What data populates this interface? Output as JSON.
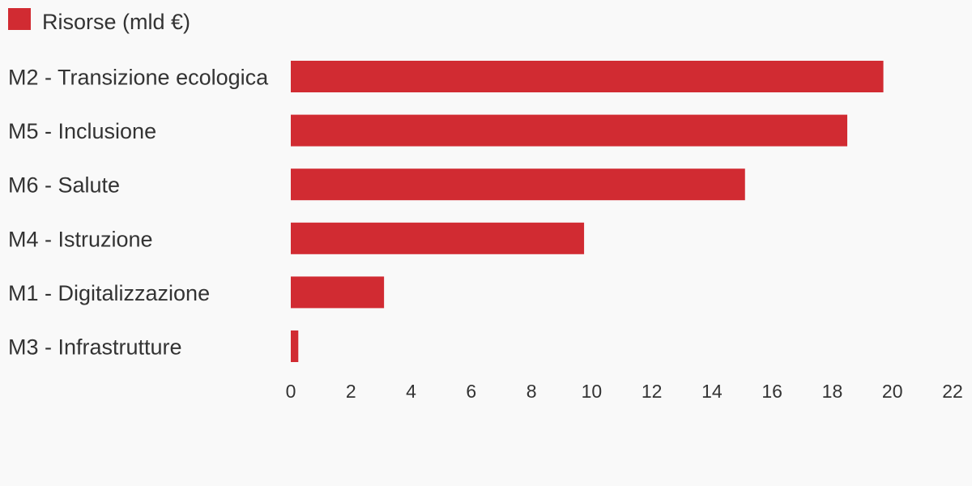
{
  "chart_data": {
    "type": "bar",
    "orientation": "horizontal",
    "categories": [
      "M2 - Transizione ecologica",
      "M5 - Inclusione",
      "M6 - Salute",
      "M4 - Istruzione",
      "M1 - Digitalizzazione",
      "M3 - Infrastrutture"
    ],
    "series": [
      {
        "name": "Risorse (mld €)",
        "values": [
          19.7,
          18.5,
          15.1,
          9.75,
          3.1,
          0.25
        ],
        "color": "#d12b32"
      }
    ],
    "xlim": [
      0,
      22
    ],
    "xticks": [
      0,
      2,
      4,
      6,
      8,
      10,
      12,
      14,
      16,
      18,
      20,
      22
    ],
    "grid": false,
    "legend_position": "top-left"
  }
}
